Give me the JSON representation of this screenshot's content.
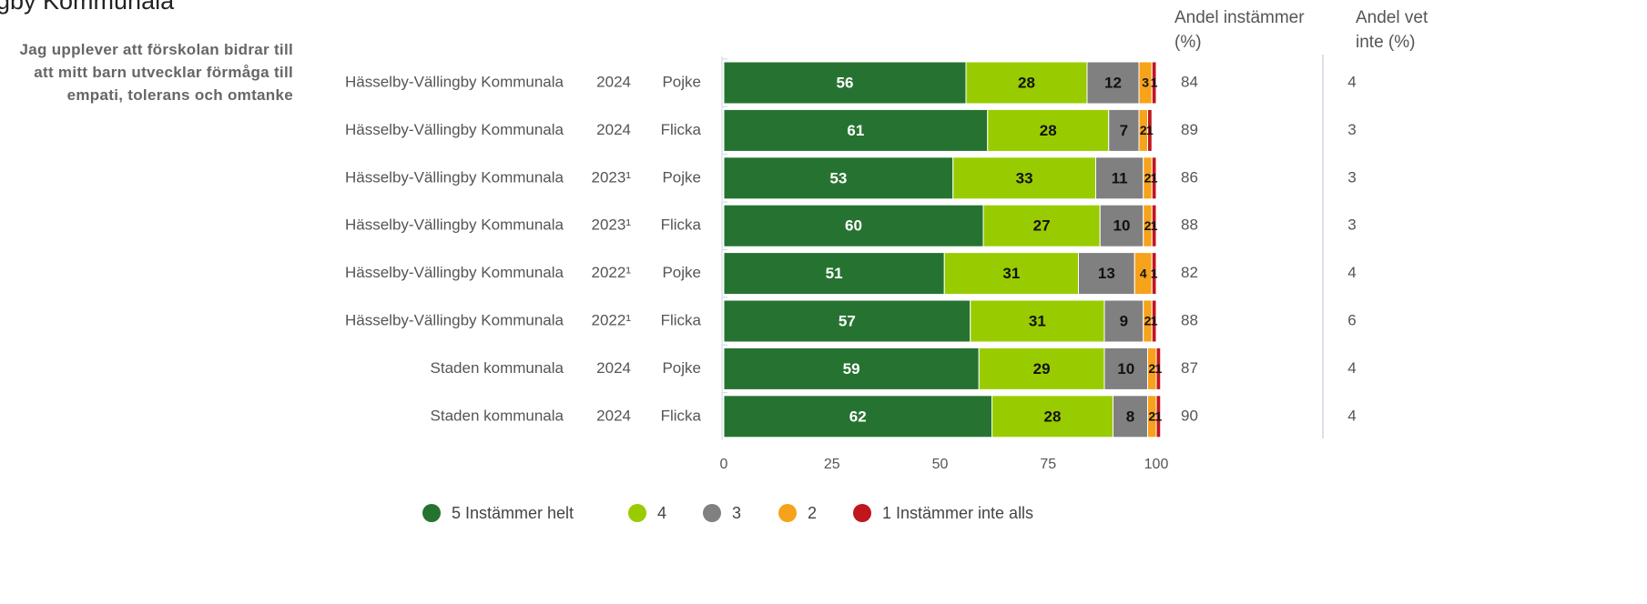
{
  "chart_data": {
    "type": "bar",
    "orientation": "horizontal",
    "stacked": true,
    "title": "gby Kommunala",
    "question": "Jag upplever att förskolan bidrar till att mitt barn utvecklar förmåga till empati, tolerans och omtanke",
    "categories": [
      "Hässelby-Vällingby Kommunala",
      "Hässelby-Vällingby Kommunala",
      "Hässelby-Vällingby Kommunala",
      "Hässelby-Vällingby Kommunala",
      "Hässelby-Vällingby Kommunala",
      "Hässelby-Vällingby Kommunala",
      "Staden kommunala",
      "Staden kommunala"
    ],
    "years": [
      "2024",
      "2024",
      "2023¹",
      "2023¹",
      "2022¹",
      "2022¹",
      "2024",
      "2024"
    ],
    "groups": [
      "Pojke",
      "Flicka",
      "Pojke",
      "Flicka",
      "Pojke",
      "Flicka",
      "Pojke",
      "Flicka"
    ],
    "series": [
      {
        "name": "5 Instämmer helt",
        "color": "#267331",
        "values": [
          56,
          61,
          53,
          60,
          51,
          57,
          59,
          62
        ]
      },
      {
        "name": "4",
        "color": "#99cc00",
        "values": [
          28,
          28,
          33,
          27,
          31,
          31,
          29,
          28
        ]
      },
      {
        "name": "3",
        "color": "#808080",
        "values": [
          12,
          7,
          11,
          10,
          13,
          9,
          10,
          8
        ]
      },
      {
        "name": "2",
        "color": "#f7a21b",
        "values": [
          3,
          2,
          2,
          2,
          4,
          2,
          2,
          2
        ]
      },
      {
        "name": "1 Instämmer inte alls",
        "color": "#c0161c",
        "values": [
          1,
          1,
          1,
          1,
          1,
          1,
          1,
          1
        ]
      }
    ],
    "columns": [
      {
        "header": "Andel instämmer (%)",
        "values": [
          84,
          89,
          86,
          88,
          82,
          88,
          87,
          90
        ]
      },
      {
        "header": "Andel vet inte (%)",
        "values": [
          4,
          3,
          3,
          3,
          4,
          6,
          4,
          4
        ]
      }
    ],
    "xlim": [
      0,
      100
    ],
    "xticks": [
      0,
      25,
      50,
      75,
      100
    ],
    "grid": false
  }
}
